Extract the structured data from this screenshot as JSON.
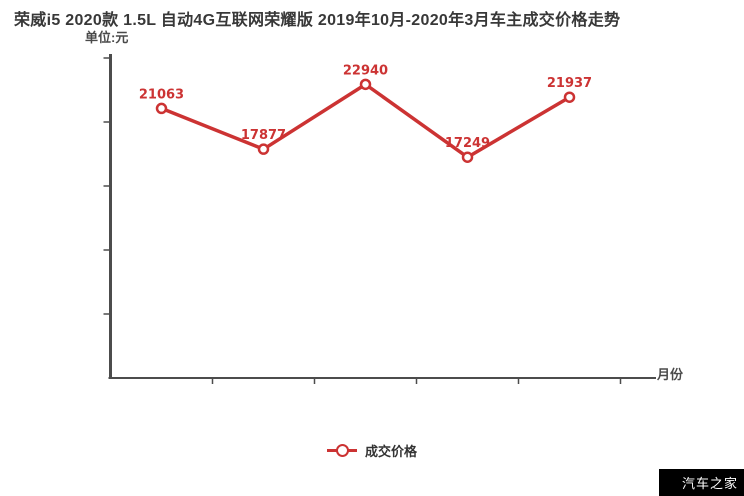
{
  "page": {
    "title": "荣威i5 2020款 1.5L 自动4G互联网荣耀版 2019年10月-2020年3月车主成交价格走势",
    "watermark": "汽车之家"
  },
  "legend": {
    "label": "成交价格"
  },
  "colors": {
    "line": "#cc3333",
    "axis": "#4c4c4c",
    "title": "#383838",
    "legend_text": "#333333",
    "watermark_bg": "#000000",
    "watermark_text": "#ffffff"
  },
  "chart_data": {
    "type": "line",
    "title": "荣威i5 2020款 1.5L 自动4G互联网荣耀版 2019年10月-2020年3月车主成交价格走势",
    "unit_label": "单位:元",
    "x_axis_label": "月份",
    "categories": [
      "",
      "",
      "",
      "",
      ""
    ],
    "x_tick_labels_visible": false,
    "series": [
      {
        "name": "成交价格",
        "values": [
          21063,
          17877,
          22940,
          17249,
          21937
        ],
        "color": "#cc3333"
      }
    ],
    "point_labels": [
      "21063",
      "17877",
      "22940",
      "17249",
      "21937"
    ],
    "ylim": [
      0,
      25000
    ],
    "y_tick_interval": 5000,
    "grid": false,
    "legend_position": "bottom"
  }
}
